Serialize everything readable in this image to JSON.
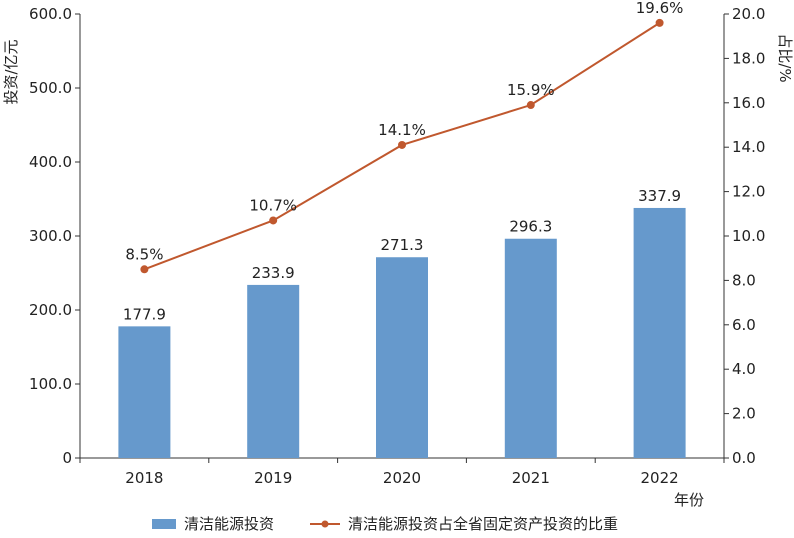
{
  "chart_data": {
    "type": "bar+line",
    "categories": [
      "2018",
      "2019",
      "2020",
      "2021",
      "2022"
    ],
    "xlabel": "年份",
    "y_left": {
      "label": "投资/亿元",
      "lim": [
        0,
        600
      ],
      "ticks": [
        "0",
        "100.0",
        "200.0",
        "300.0",
        "400.0",
        "500.0",
        "600.0"
      ]
    },
    "y_right": {
      "label": "占比/%",
      "lim": [
        0,
        20
      ],
      "ticks": [
        "0.0",
        "2.0",
        "4.0",
        "6.0",
        "8.0",
        "10.0",
        "12.0",
        "14.0",
        "16.0",
        "18.0",
        "20.0"
      ]
    },
    "series": [
      {
        "name": "清洁能源投资",
        "type": "bar",
        "axis": "left",
        "color": "#6699cc",
        "values": [
          177.9,
          233.9,
          271.3,
          296.3,
          337.9
        ],
        "labels": [
          "177.9",
          "233.9",
          "271.3",
          "296.3",
          "337.9"
        ]
      },
      {
        "name": "清洁能源投资占全省固定资产投资的比重",
        "type": "line",
        "axis": "right",
        "color": "#c0582e",
        "values": [
          8.5,
          10.7,
          14.1,
          15.9,
          19.6
        ],
        "labels": [
          "8.5%",
          "10.7%",
          "14.1%",
          "15.9%",
          "19.6%"
        ]
      }
    ],
    "grid": false,
    "legend_position": "bottom"
  }
}
